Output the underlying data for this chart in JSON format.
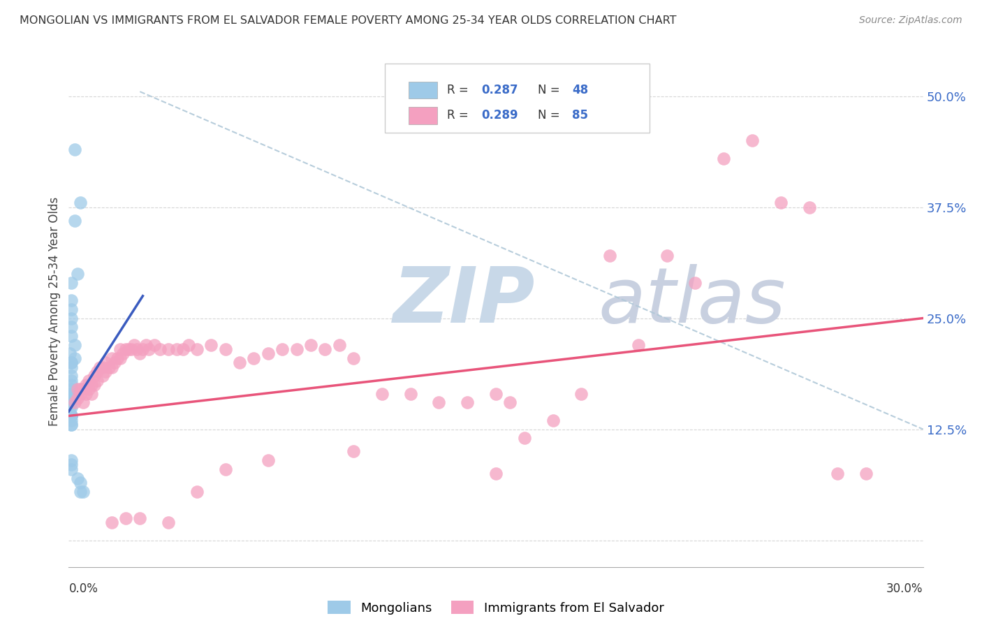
{
  "title": "MONGOLIAN VS IMMIGRANTS FROM EL SALVADOR FEMALE POVERTY AMONG 25-34 YEAR OLDS CORRELATION CHART",
  "source": "Source: ZipAtlas.com",
  "ylabel": "Female Poverty Among 25-34 Year Olds",
  "xlim": [
    0.0,
    0.3
  ],
  "ylim": [
    -0.03,
    0.545
  ],
  "yticks": [
    0.0,
    0.125,
    0.25,
    0.375,
    0.5
  ],
  "ytick_labels": [
    "",
    "12.5%",
    "25.0%",
    "37.5%",
    "50.0%"
  ],
  "color_mongolian": "#9ecae8",
  "color_elsalvador": "#f4a0c0",
  "color_line_mongolian": "#3a5bbf",
  "color_line_elsalvador": "#e8547a",
  "color_dashed": "#b0c8d8",
  "watermark_zip": "ZIP",
  "watermark_atlas": "atlas",
  "watermark_color_zip": "#c8d8e8",
  "watermark_color_atlas": "#c8d0e0",
  "mongolian_x": [
    0.002,
    0.004,
    0.002,
    0.003,
    0.001,
    0.001,
    0.001,
    0.001,
    0.001,
    0.001,
    0.0005,
    0.001,
    0.002,
    0.002,
    0.001,
    0.001,
    0.001,
    0.001,
    0.001,
    0.001,
    0.001,
    0.0005,
    0.0005,
    0.001,
    0.001,
    0.001,
    0.0005,
    0.0005,
    0.0005,
    0.0005,
    0.001,
    0.0005,
    0.0005,
    0.001,
    0.0005,
    0.001,
    0.001,
    0.001,
    0.001,
    0.001,
    0.001,
    0.001,
    0.004,
    0.005,
    0.001,
    0.001,
    0.003,
    0.004
  ],
  "mongolian_y": [
    0.44,
    0.38,
    0.36,
    0.3,
    0.29,
    0.27,
    0.26,
    0.25,
    0.24,
    0.23,
    0.21,
    0.2,
    0.205,
    0.22,
    0.2,
    0.195,
    0.185,
    0.18,
    0.175,
    0.17,
    0.165,
    0.165,
    0.16,
    0.165,
    0.16,
    0.16,
    0.155,
    0.155,
    0.155,
    0.155,
    0.155,
    0.155,
    0.15,
    0.15,
    0.14,
    0.14,
    0.14,
    0.14,
    0.135,
    0.13,
    0.13,
    0.085,
    0.055,
    0.055,
    0.08,
    0.09,
    0.07,
    0.065
  ],
  "elsalvador_x": [
    0.002,
    0.003,
    0.003,
    0.004,
    0.004,
    0.005,
    0.005,
    0.006,
    0.006,
    0.007,
    0.007,
    0.008,
    0.008,
    0.009,
    0.009,
    0.01,
    0.01,
    0.011,
    0.012,
    0.012,
    0.013,
    0.013,
    0.014,
    0.015,
    0.015,
    0.016,
    0.017,
    0.018,
    0.018,
    0.019,
    0.02,
    0.021,
    0.022,
    0.023,
    0.024,
    0.025,
    0.026,
    0.027,
    0.028,
    0.03,
    0.032,
    0.035,
    0.038,
    0.04,
    0.042,
    0.045,
    0.05,
    0.055,
    0.06,
    0.065,
    0.07,
    0.075,
    0.08,
    0.085,
    0.09,
    0.095,
    0.1,
    0.11,
    0.12,
    0.13,
    0.14,
    0.15,
    0.155,
    0.16,
    0.17,
    0.18,
    0.19,
    0.2,
    0.21,
    0.22,
    0.23,
    0.24,
    0.25,
    0.26,
    0.27,
    0.28,
    0.15,
    0.1,
    0.07,
    0.055,
    0.045,
    0.035,
    0.025,
    0.02,
    0.015
  ],
  "elsalvador_y": [
    0.155,
    0.16,
    0.17,
    0.165,
    0.17,
    0.155,
    0.17,
    0.165,
    0.175,
    0.17,
    0.18,
    0.165,
    0.175,
    0.175,
    0.185,
    0.18,
    0.19,
    0.195,
    0.185,
    0.195,
    0.19,
    0.2,
    0.195,
    0.195,
    0.205,
    0.2,
    0.205,
    0.205,
    0.215,
    0.21,
    0.215,
    0.215,
    0.215,
    0.22,
    0.215,
    0.21,
    0.215,
    0.22,
    0.215,
    0.22,
    0.215,
    0.215,
    0.215,
    0.215,
    0.22,
    0.215,
    0.22,
    0.215,
    0.2,
    0.205,
    0.21,
    0.215,
    0.215,
    0.22,
    0.215,
    0.22,
    0.205,
    0.165,
    0.165,
    0.155,
    0.155,
    0.165,
    0.155,
    0.115,
    0.135,
    0.165,
    0.32,
    0.22,
    0.32,
    0.29,
    0.43,
    0.45,
    0.38,
    0.375,
    0.075,
    0.075,
    0.075,
    0.1,
    0.09,
    0.08,
    0.055,
    0.02,
    0.025,
    0.025,
    0.02
  ],
  "blue_line_x": [
    0.0,
    0.026
  ],
  "blue_line_y": [
    0.145,
    0.275
  ],
  "pink_line_x": [
    0.0,
    0.3
  ],
  "pink_line_y": [
    0.14,
    0.25
  ]
}
